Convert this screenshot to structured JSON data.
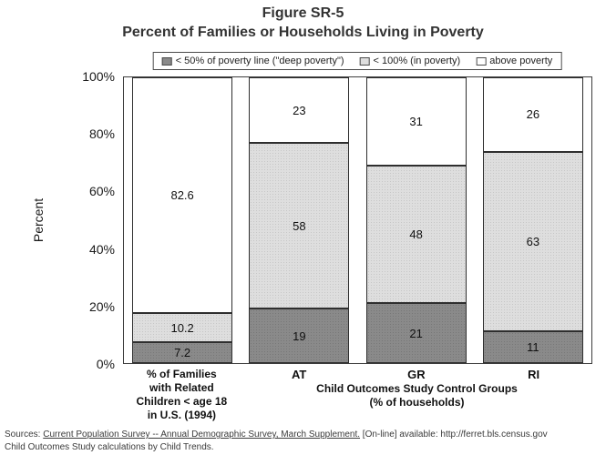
{
  "title": {
    "line1": "Figure SR-5",
    "line2": "Percent of Families or Households Living in Poverty"
  },
  "chart_data": {
    "type": "bar",
    "stacked": true,
    "title": "Figure SR-5 — Percent of Families or Households Living in Poverty",
    "ylabel": "Percent",
    "ylim": [
      0,
      100
    ],
    "ytick_labels": [
      "0%",
      "20%",
      "40%",
      "60%",
      "80%",
      "100%"
    ],
    "grid": false,
    "legend_position": "top-center",
    "categories": [
      "% of Families with Related Children < age 18 in U.S. (1994)",
      "AT",
      "GR",
      "RI"
    ],
    "category_label_lines": [
      [
        "% of Families",
        "with Related",
        "Children < age 18",
        "in U.S. (1994)"
      ],
      [
        "AT"
      ],
      [
        "GR"
      ],
      [
        "RI"
      ]
    ],
    "group_label": {
      "line1": "Child Outcomes Study Control Groups",
      "line2": "(% of households)"
    },
    "series": [
      {
        "name": "< 50% of poverty line (\"deep poverty\")",
        "color": "#8a8a8a",
        "dot_color": "#777777",
        "values": [
          7.2,
          19,
          21,
          11
        ]
      },
      {
        "name": "< 100% (in poverty)",
        "color": "#dedede",
        "dot_color": "#c6c6c6",
        "values": [
          10.2,
          58,
          48,
          63
        ]
      },
      {
        "name": "above poverty",
        "color": "#ffffff",
        "dot_color": "",
        "values": [
          82.6,
          23,
          31,
          26
        ]
      }
    ]
  },
  "footer": {
    "line1_prefix": "Sources:  ",
    "line1_underlined": "Current Population Survey -- Annual Demographic Survey, March Supplement.",
    "line1_suffix": "  [On-line] available: http://ferret.bls.census.gov",
    "line2": "Child Outcomes Study calculations by Child Trends."
  }
}
